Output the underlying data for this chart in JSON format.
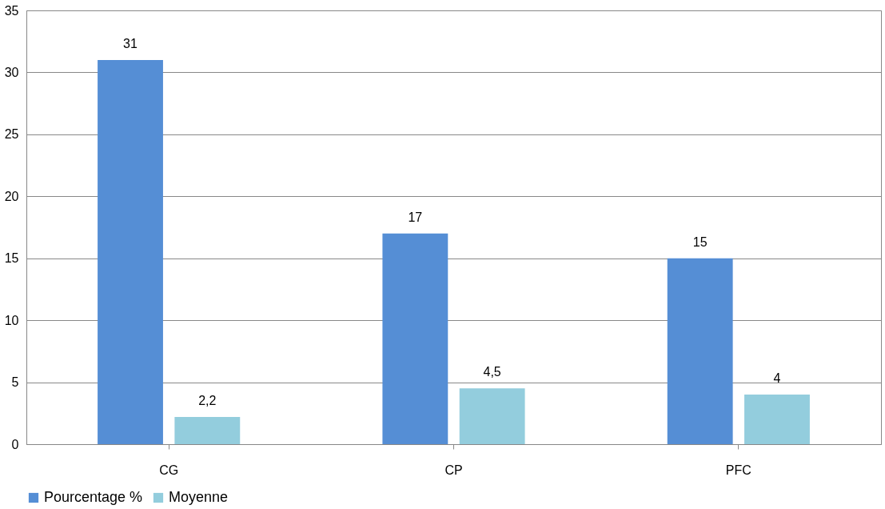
{
  "chart_data": {
    "type": "bar",
    "categories": [
      "CG",
      "CP",
      "PFC"
    ],
    "series": [
      {
        "name": "Pourcentage %",
        "color": "#558ed5",
        "values": [
          31,
          17,
          15
        ],
        "value_labels": [
          "31",
          "17",
          "15"
        ]
      },
      {
        "name": "Moyenne",
        "color": "#93cddd",
        "values": [
          2.2,
          4.5,
          4
        ],
        "value_labels": [
          "2,2",
          "4,5",
          "4"
        ]
      }
    ],
    "ylim": [
      0,
      35
    ],
    "yticks": [
      0,
      5,
      10,
      15,
      20,
      25,
      30,
      35
    ],
    "grid": "y",
    "legend": "bottom"
  }
}
